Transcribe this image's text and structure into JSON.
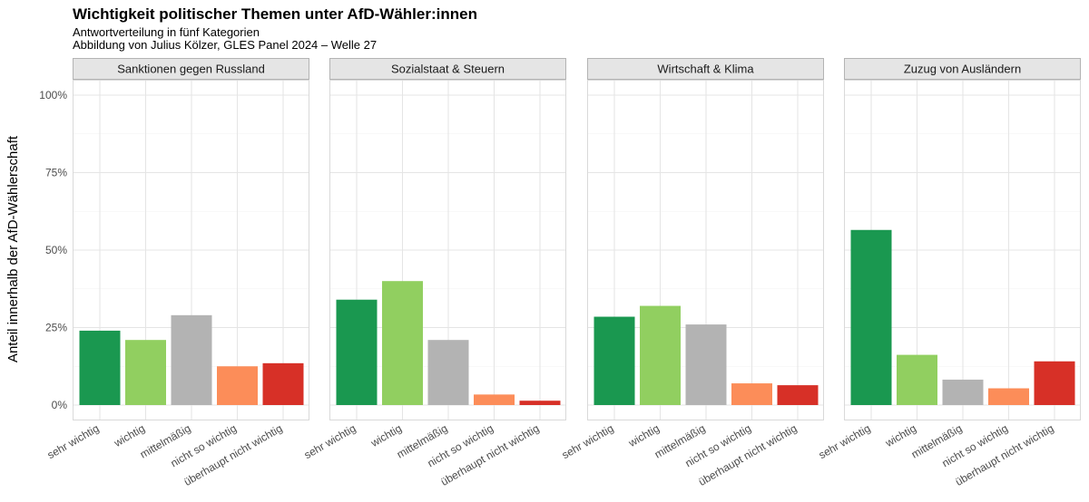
{
  "chart_data": {
    "type": "bar",
    "title": "Wichtigkeit politischer Themen unter AfD-Wähler:innen",
    "subtitle_lines": [
      "Antwortverteilung in fünf Kategorien",
      "Abbildung von Julius Kölzer, GLES Panel 2024 – Welle 27"
    ],
    "ylabel": "Anteil innerhalb der AfD-Wählerschaft",
    "ylim": [
      0,
      1
    ],
    "y_ticks": [
      0,
      0.25,
      0.5,
      0.75,
      1.0
    ],
    "y_tick_labels": [
      "0%",
      "25%",
      "50%",
      "75%",
      "100%"
    ],
    "categories": [
      "sehr wichtig",
      "wichtig",
      "mittelmäßig",
      "nicht so wichtig",
      "überhaupt nicht wichtig"
    ],
    "category_colors": [
      "#1a9850",
      "#91cf60",
      "#b3b3b3",
      "#fc8d59",
      "#d73027"
    ],
    "grid": true,
    "panels": [
      {
        "name": "Sanktionen gegen Russland",
        "values": [
          0.24,
          0.21,
          0.29,
          0.125,
          0.135
        ]
      },
      {
        "name": "Sozialstaat & Steuern",
        "values": [
          0.34,
          0.4,
          0.21,
          0.034,
          0.014
        ]
      },
      {
        "name": "Wirtschaft & Klima",
        "values": [
          0.285,
          0.32,
          0.26,
          0.07,
          0.064
        ]
      },
      {
        "name": "Zuzug von Ausländern",
        "values": [
          0.565,
          0.162,
          0.082,
          0.054,
          0.141
        ]
      }
    ]
  }
}
